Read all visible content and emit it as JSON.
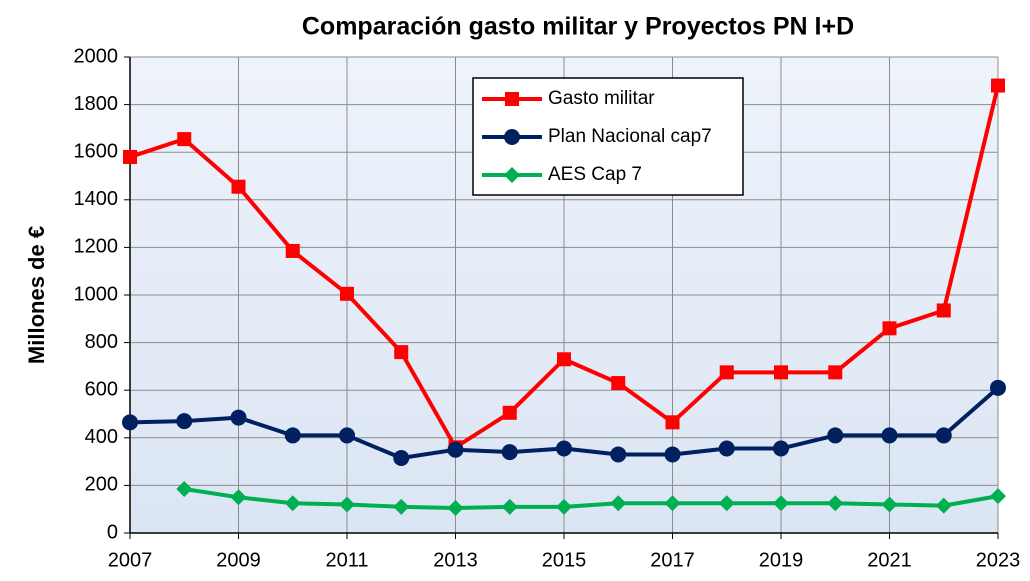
{
  "chart_data": {
    "type": "line",
    "title": "Comparación  gasto militar y Proyectos PN I+D",
    "ylabel": "Millones de €",
    "x": [
      2007,
      2008,
      2009,
      2010,
      2011,
      2012,
      2013,
      2014,
      2015,
      2016,
      2017,
      2018,
      2019,
      2020,
      2021,
      2022,
      2023
    ],
    "series": [
      {
        "name": "Gasto militar",
        "color": "#ff0000",
        "marker": "square",
        "values": [
          1580,
          1655,
          1455,
          1185,
          1005,
          760,
          360,
          505,
          730,
          630,
          465,
          675,
          675,
          675,
          860,
          935,
          1880
        ]
      },
      {
        "name": "Plan Nacional cap7",
        "color": "#002060",
        "marker": "circle",
        "values": [
          465,
          470,
          485,
          410,
          410,
          315,
          350,
          340,
          355,
          330,
          330,
          355,
          355,
          410,
          410,
          410,
          610
        ]
      },
      {
        "name": "AES Cap 7",
        "color": "#00b050",
        "marker": "diamond",
        "values": [
          null,
          185,
          150,
          125,
          120,
          110,
          105,
          110,
          110,
          125,
          125,
          125,
          125,
          125,
          120,
          115,
          155
        ]
      }
    ],
    "xlim": [
      2007,
      2023
    ],
    "xticks": [
      2007,
      2009,
      2011,
      2013,
      2015,
      2017,
      2019,
      2021,
      2023
    ],
    "ylim": [
      0,
      2000
    ],
    "yticks": [
      0,
      200,
      400,
      600,
      800,
      1000,
      1200,
      1400,
      1600,
      1800,
      2000
    ],
    "grid": true
  }
}
